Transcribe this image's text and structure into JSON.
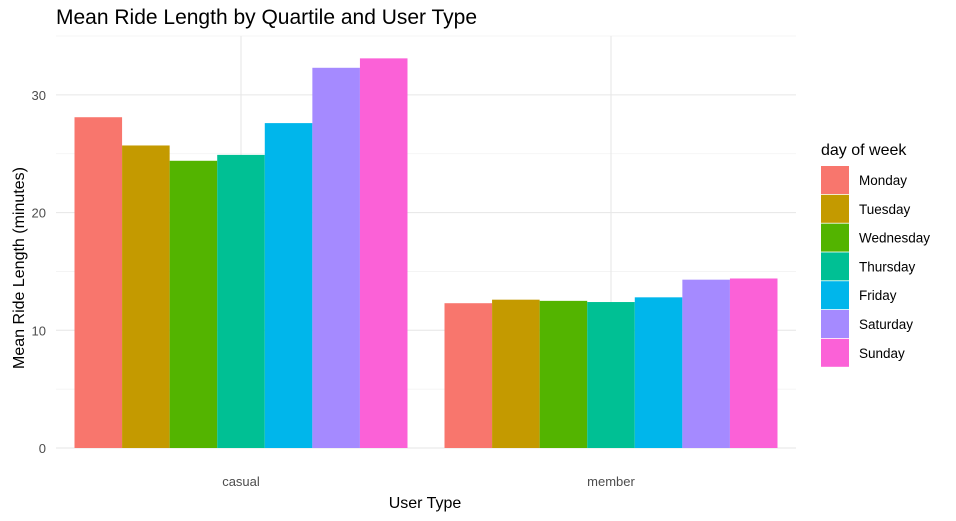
{
  "chart_data": {
    "type": "bar",
    "title": "Mean Ride Length by Quartile and User Type",
    "xlabel": "User Type",
    "ylabel": "Mean Ride Length (minutes)",
    "categories": [
      "casual",
      "member"
    ],
    "ylim": [
      0,
      35
    ],
    "yticks": [
      0,
      10,
      20,
      30
    ],
    "grid": true,
    "legend": {
      "title": "day of week",
      "position": "right"
    },
    "series": [
      {
        "name": "Monday",
        "color": "#F8766D",
        "values": [
          28.1,
          12.3
        ]
      },
      {
        "name": "Tuesday",
        "color": "#C49A00",
        "values": [
          25.7,
          12.6
        ]
      },
      {
        "name": "Wednesday",
        "color": "#53B400",
        "values": [
          24.4,
          12.5
        ]
      },
      {
        "name": "Thursday",
        "color": "#00C094",
        "values": [
          24.9,
          12.4
        ]
      },
      {
        "name": "Friday",
        "color": "#00B6EB",
        "values": [
          27.6,
          12.8
        ]
      },
      {
        "name": "Saturday",
        "color": "#A58AFF",
        "values": [
          32.3,
          14.3
        ]
      },
      {
        "name": "Sunday",
        "color": "#FB61D7",
        "values": [
          33.1,
          14.4
        ]
      }
    ]
  }
}
